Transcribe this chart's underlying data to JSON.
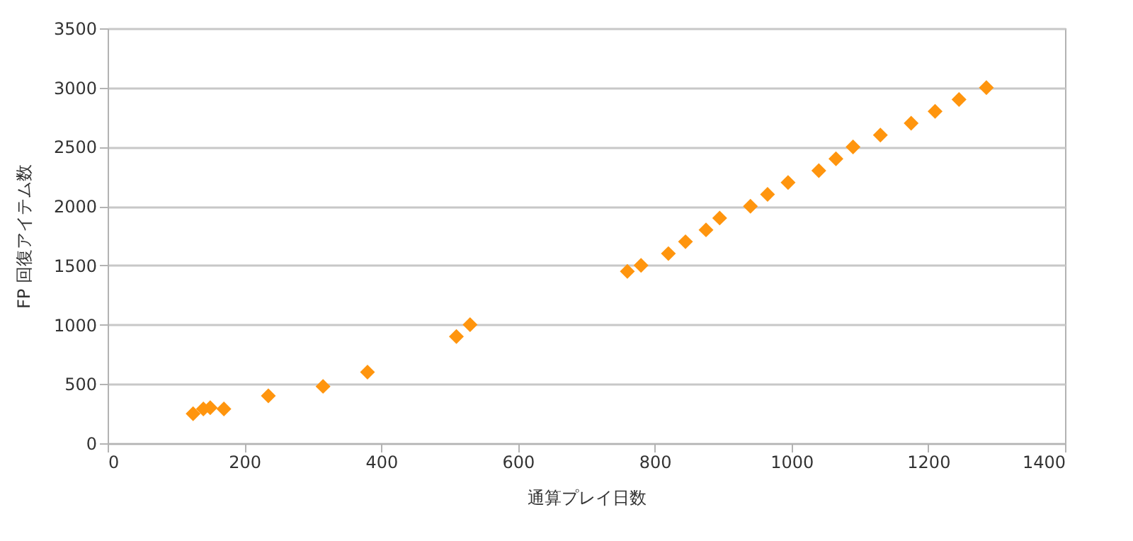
{
  "chart_data": {
    "type": "scatter",
    "xlabel": "通算プレイ日数",
    "ylabel": "FP 回復アイテム数",
    "xlim": [
      0,
      1400
    ],
    "xticks": [
      0,
      200,
      400,
      600,
      800,
      1000,
      1200,
      1400
    ],
    "ylim": [
      0,
      3500
    ],
    "yticks": [
      0,
      500,
      1000,
      1500,
      2000,
      2500,
      3000,
      3500
    ],
    "grid": "y",
    "marker": "diamond",
    "series": [
      {
        "color": "#ff950e",
        "x": [
          125,
          140,
          150,
          170,
          235,
          315,
          380,
          510,
          530,
          760,
          780,
          820,
          845,
          875,
          895,
          940,
          965,
          995,
          1040,
          1065,
          1090,
          1130,
          1175,
          1210,
          1245,
          1285
        ],
        "values": [
          250,
          290,
          300,
          290,
          400,
          480,
          600,
          900,
          1000,
          1450,
          1500,
          1600,
          1700,
          1800,
          1900,
          2000,
          2100,
          2200,
          2300,
          2400,
          2500,
          2600,
          2700,
          2800,
          2900,
          3000
        ]
      }
    ]
  }
}
